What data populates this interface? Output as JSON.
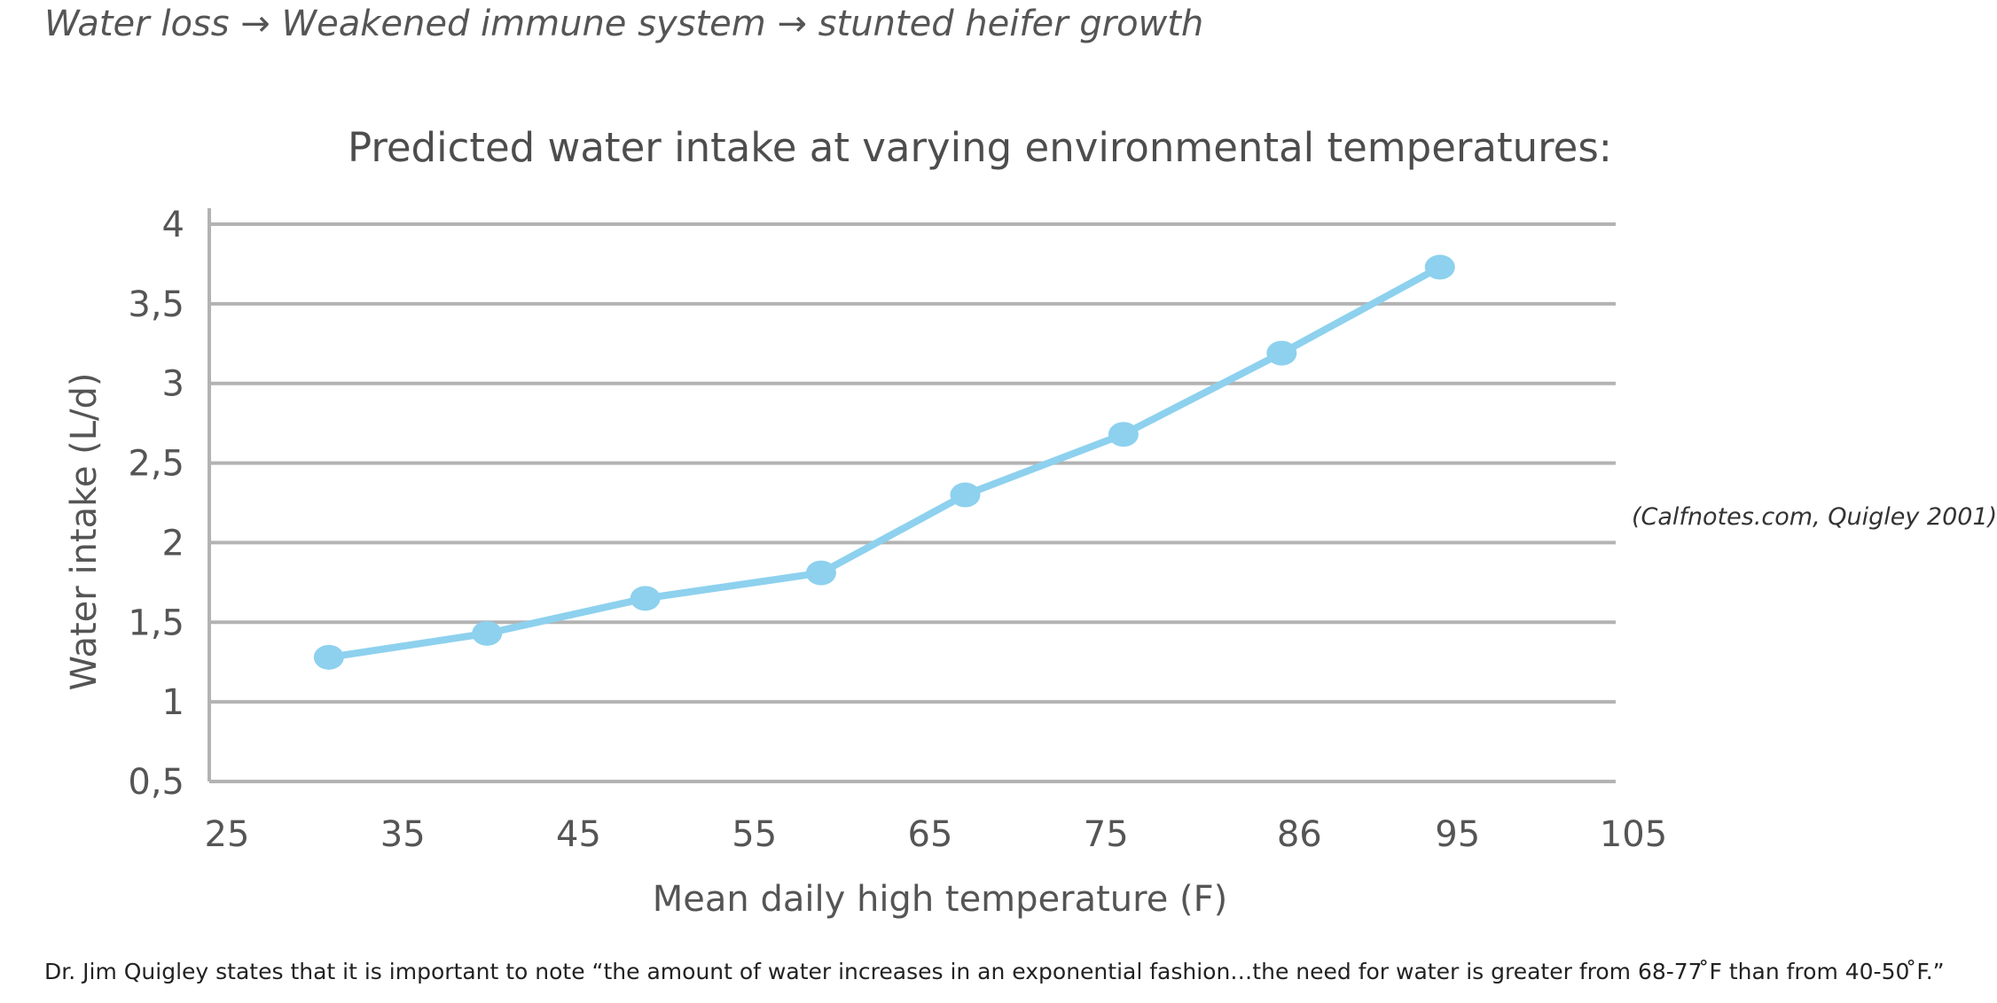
{
  "header": {
    "caption": "Water loss → Weakened immune system → stunted heifer growth"
  },
  "citation": "(Calfnotes.com, Quigley 2001)",
  "footer": {
    "note": "Dr. Jim Quigley states that it is important to note “the amount of water increases in an exponential fashion…the need for water is greater from 68-77 ̊F than from 40-50 ̊F.”"
  },
  "colors": {
    "series": "#8dd1ee",
    "grid": "#b3b3b3",
    "text": "#555555"
  },
  "chart_data": {
    "type": "line",
    "title": "Predicted water intake at varying environmental temperatures:",
    "xlabel": "Mean daily high temperature (F)",
    "ylabel": "Water intake (L/d)",
    "x_tick_labels": [
      "25",
      "35",
      "45",
      "55",
      "65",
      "75",
      "86",
      "95",
      "105"
    ],
    "y_tick_labels": [
      "0,5",
      "1",
      "1,5",
      "2",
      "2,5",
      "3",
      "3,5",
      "4"
    ],
    "xlim": [
      25,
      105
    ],
    "ylim": [
      0.5,
      4
    ],
    "grid": true,
    "series": [
      {
        "x": [
          31.8,
          40.8,
          49.8,
          59.8,
          68,
          77,
          86,
          95
        ],
        "y": [
          1.28,
          1.43,
          1.65,
          1.81,
          2.3,
          2.68,
          3.19,
          3.73
        ]
      }
    ]
  }
}
